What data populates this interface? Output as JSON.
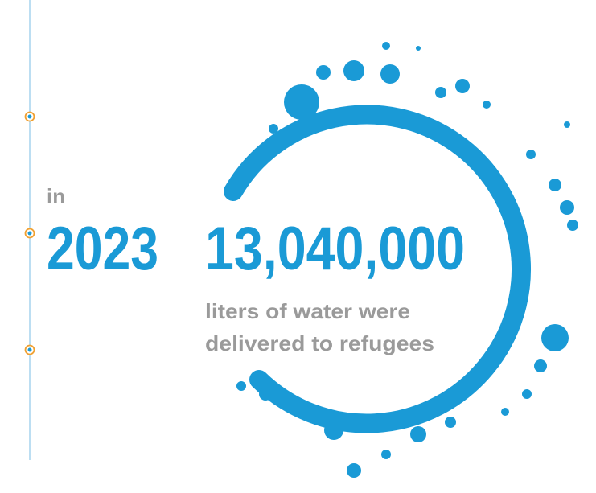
{
  "year_label": "in",
  "year": "2023",
  "stat": {
    "value": "13,040,000",
    "caption_lines": [
      "liters of water were",
      "delivered to refugees"
    ]
  }
}
